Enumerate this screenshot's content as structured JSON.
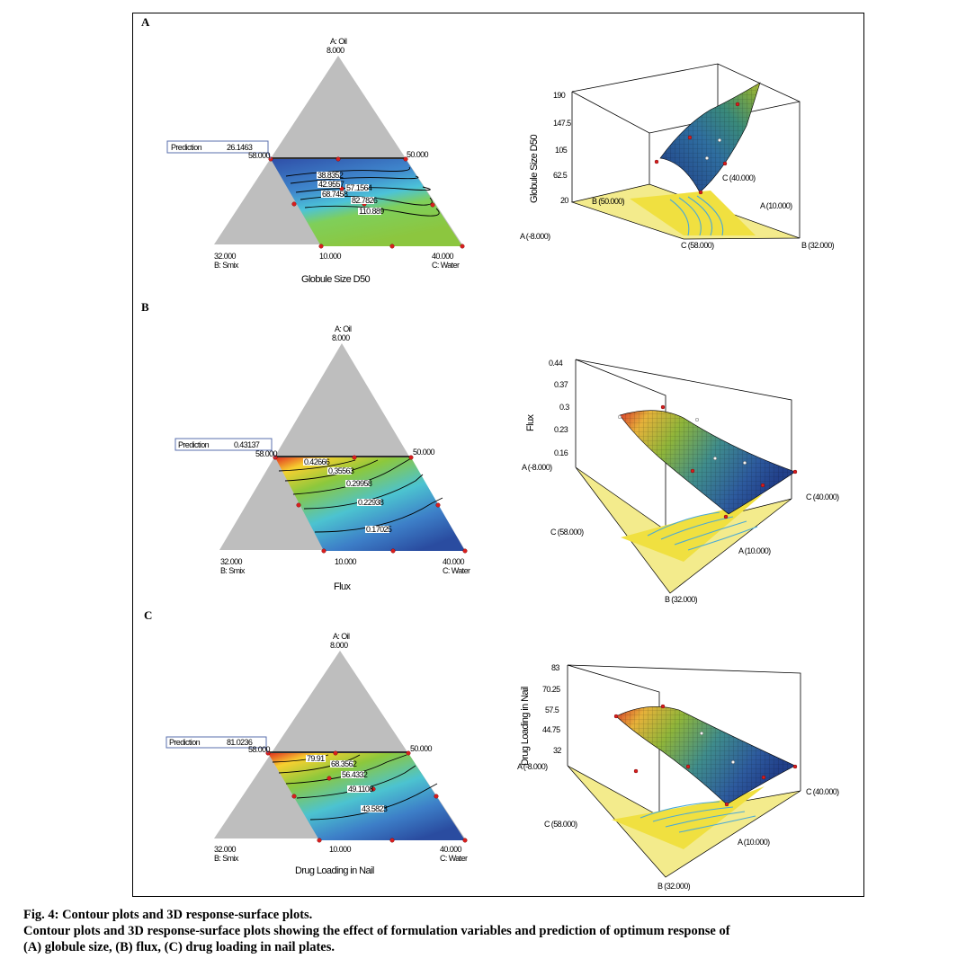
{
  "chart_data": [
    {
      "panel": "A",
      "type": "contour",
      "response": "Globule Size D50",
      "prediction_label": "Prediction",
      "prediction_value": "26.1463",
      "apex_top": {
        "name": "A: Oil",
        "value": "8.000"
      },
      "apex_left": {
        "name": "B: Smix",
        "value": "32.000"
      },
      "apex_right": {
        "name": "C: Water",
        "value": "40.000"
      },
      "edge_labels": {
        "left": "58.000",
        "right": "50.000",
        "bottom": "10.000"
      },
      "contour_labels": [
        "38.8352",
        "42.9557",
        "57.1564",
        "68.7458",
        "82.7826",
        "110.889"
      ],
      "surface": {
        "zlabel": "Globule Size D50",
        "zticks": [
          "20",
          "62.5",
          "105",
          "147.5",
          "190"
        ],
        "corner_labels": [
          "B (50.000)",
          "A (10.000)",
          "A (-8.000)",
          "C (58.000)",
          "B (32.000)",
          "C (40.000)"
        ]
      }
    },
    {
      "panel": "B",
      "type": "contour",
      "response": "Flux",
      "prediction_label": "Prediction",
      "prediction_value": "0.43137",
      "apex_top": {
        "name": "A: Oil",
        "value": "8.000"
      },
      "apex_left": {
        "name": "B: Smix",
        "value": "32.000"
      },
      "apex_right": {
        "name": "C: Water",
        "value": "40.000"
      },
      "edge_labels": {
        "left": "58.000",
        "right": "50.000",
        "bottom": "10.000"
      },
      "contour_labels": [
        "0.42666",
        "0.35563",
        "0.29958",
        "0.22938",
        "0.17025"
      ],
      "surface": {
        "zlabel": "Flux",
        "zticks": [
          "0.16",
          "0.23",
          "0.3",
          "0.37",
          "0.44"
        ],
        "corner_labels": [
          "A (-8.000)",
          "C (40.000)",
          "C (58.000)",
          "A (10.000)",
          "B (32.000)"
        ]
      }
    },
    {
      "panel": "C",
      "type": "contour",
      "response": "Drug Loading in Nail",
      "prediction_label": "Prediction",
      "prediction_value": "81.0236",
      "apex_top": {
        "name": "A: Oil",
        "value": "8.000"
      },
      "apex_left": {
        "name": "B: Smix",
        "value": "32.000"
      },
      "apex_right": {
        "name": "C: Water",
        "value": "40.000"
      },
      "edge_labels": {
        "left": "58.000",
        "right": "50.000",
        "bottom": "10.000"
      },
      "contour_labels": [
        "79.91",
        "68.3562",
        "56.4332",
        "49.1108",
        "43.5823"
      ],
      "surface": {
        "zlabel": "Drug Loading in Nail",
        "zticks": [
          "32",
          "44.75",
          "57.5",
          "70.25",
          "83"
        ],
        "corner_labels": [
          "A (-8.000)",
          "C (40.000)",
          "C (58.000)",
          "A (10.000)",
          "B (32.000)"
        ]
      }
    }
  ],
  "caption": {
    "title": "Fig. 4: Contour plots and 3D response-surface plots.",
    "line2": "Contour plots and 3D response-surface plots showing the effect of formulation variables and prediction of optimum response of",
    "line3": "(A) globule size, (B) flux, (C) drug loading in nail plates."
  }
}
